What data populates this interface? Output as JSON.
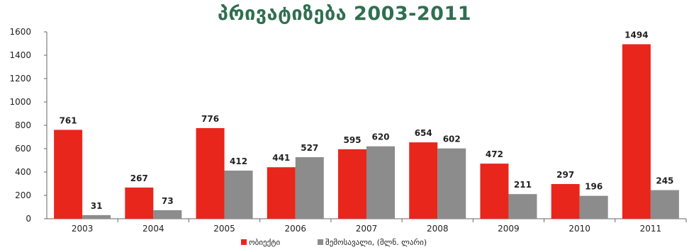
{
  "chart_data": {
    "type": "bar",
    "title": "პრივატიზება 2003-2011",
    "categories": [
      "2003",
      "2004",
      "2005",
      "2006",
      "2007",
      "2008",
      "2009",
      "2010",
      "2011"
    ],
    "series": [
      {
        "name": "ობიექტი",
        "color": "#e8261c",
        "values": [
          761,
          267,
          776,
          441,
          595,
          654,
          472,
          297,
          1494
        ]
      },
      {
        "name": "შემოსავალი, (მლნ. ლარი)",
        "color": "#8c8c8c",
        "values": [
          31,
          73,
          412,
          527,
          620,
          602,
          211,
          196,
          245
        ]
      }
    ],
    "ylim": [
      0,
      1600
    ],
    "yticks": [
      "0",
      "200",
      "400",
      "600",
      "800",
      "1000",
      "1200",
      "1400",
      "1600"
    ],
    "grid": false,
    "legend_position": "bottom"
  }
}
